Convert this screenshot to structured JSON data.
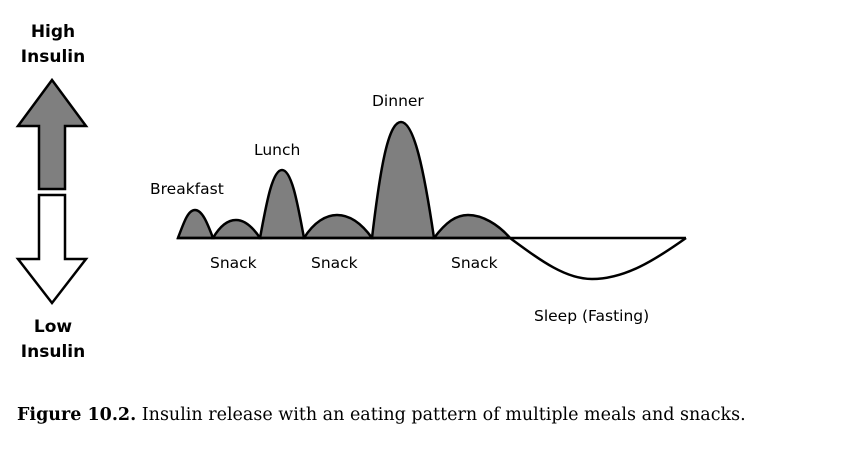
{
  "axis": {
    "high_line1": "High",
    "high_line2": "Insulin",
    "low_line1": "Low",
    "low_line2": "Insulin"
  },
  "labels": {
    "breakfast": "Breakfast",
    "lunch": "Lunch",
    "dinner": "Dinner",
    "snack_1": "Snack",
    "snack_2": "Snack",
    "snack_3": "Snack",
    "sleep": "Sleep (Fasting)"
  },
  "caption": {
    "figure_number": "Figure 10.2.",
    "text": " Insulin release with an eating pattern of multiple meals and snacks."
  },
  "colors": {
    "fill": "#7f7f7f",
    "stroke": "#000000",
    "background": "#ffffff"
  }
}
